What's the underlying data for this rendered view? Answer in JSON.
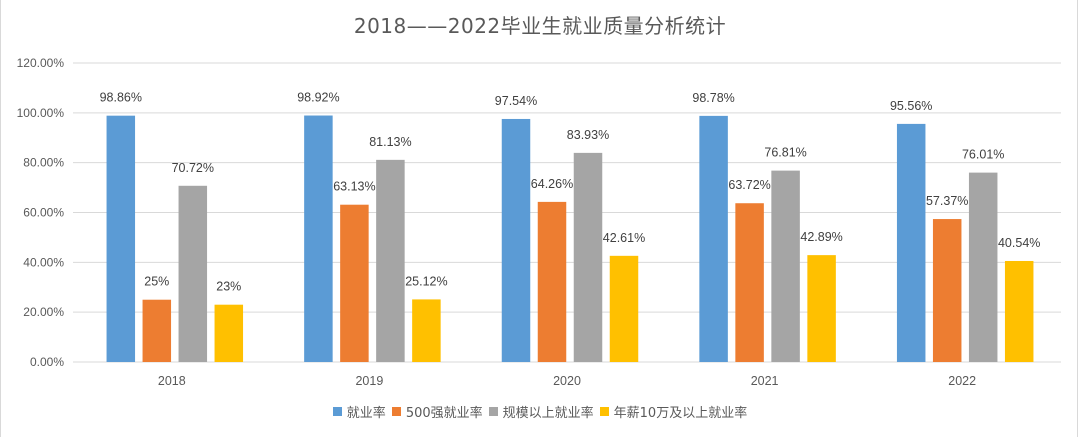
{
  "chart_data": {
    "type": "bar",
    "title": "2018——2022毕业生就业质量分析统计",
    "xlabel": "",
    "ylabel": "",
    "categories": [
      "2018",
      "2019",
      "2020",
      "2021",
      "2022"
    ],
    "ylim": [
      0,
      120
    ],
    "yticks": [
      "0.00%",
      "20.00%",
      "40.00%",
      "60.00%",
      "80.00%",
      "100.00%",
      "120.00%"
    ],
    "grid": true,
    "legend_position": "bottom",
    "series": [
      {
        "name": "就业率",
        "color": "#5b9bd5",
        "values": [
          98.86,
          98.92,
          97.54,
          98.78,
          95.56
        ],
        "labels": [
          "98.86%",
          "98.92%",
          "97.54%",
          "98.78%",
          "95.56%"
        ]
      },
      {
        "name": "500强就业率",
        "color": "#ed7d31",
        "values": [
          25,
          63.13,
          64.26,
          63.72,
          57.37
        ],
        "labels": [
          "25%",
          "63.13%",
          "64.26%",
          "63.72%",
          "57.37%"
        ]
      },
      {
        "name": "规模以上就业率",
        "color": "#a5a5a5",
        "values": [
          70.72,
          81.13,
          83.93,
          76.81,
          76.01
        ],
        "labels": [
          "70.72%",
          "81.13%",
          "83.93%",
          "76.81%",
          "76.01%"
        ]
      },
      {
        "name": "年薪10万及以上就业率",
        "color": "#ffc000",
        "values": [
          23,
          25.12,
          42.61,
          42.89,
          40.54
        ],
        "labels": [
          "23%",
          "25.12%",
          "42.61%",
          "42.89%",
          "40.54%"
        ]
      }
    ]
  }
}
